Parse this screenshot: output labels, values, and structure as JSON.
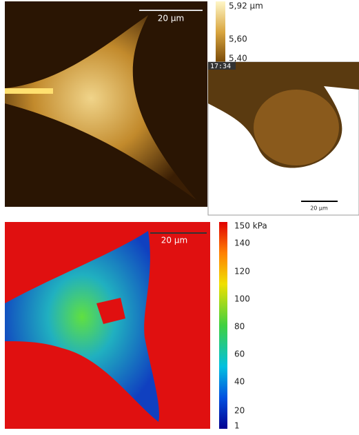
{
  "panels": [
    {
      "scale_bar": "20 µm",
      "colorbar": {
        "labels": [
          "5,92 µm",
          "5,60",
          "5,40"
        ]
      }
    },
    {
      "timestamp": "17:34",
      "scale_bar": "20 µm"
    },
    {
      "scale_bar": "20 µm",
      "colorbar": {
        "labels": [
          "150 kPa",
          "140",
          "120",
          "100",
          "80",
          "60",
          "40",
          "20",
          "1"
        ]
      }
    }
  ]
}
